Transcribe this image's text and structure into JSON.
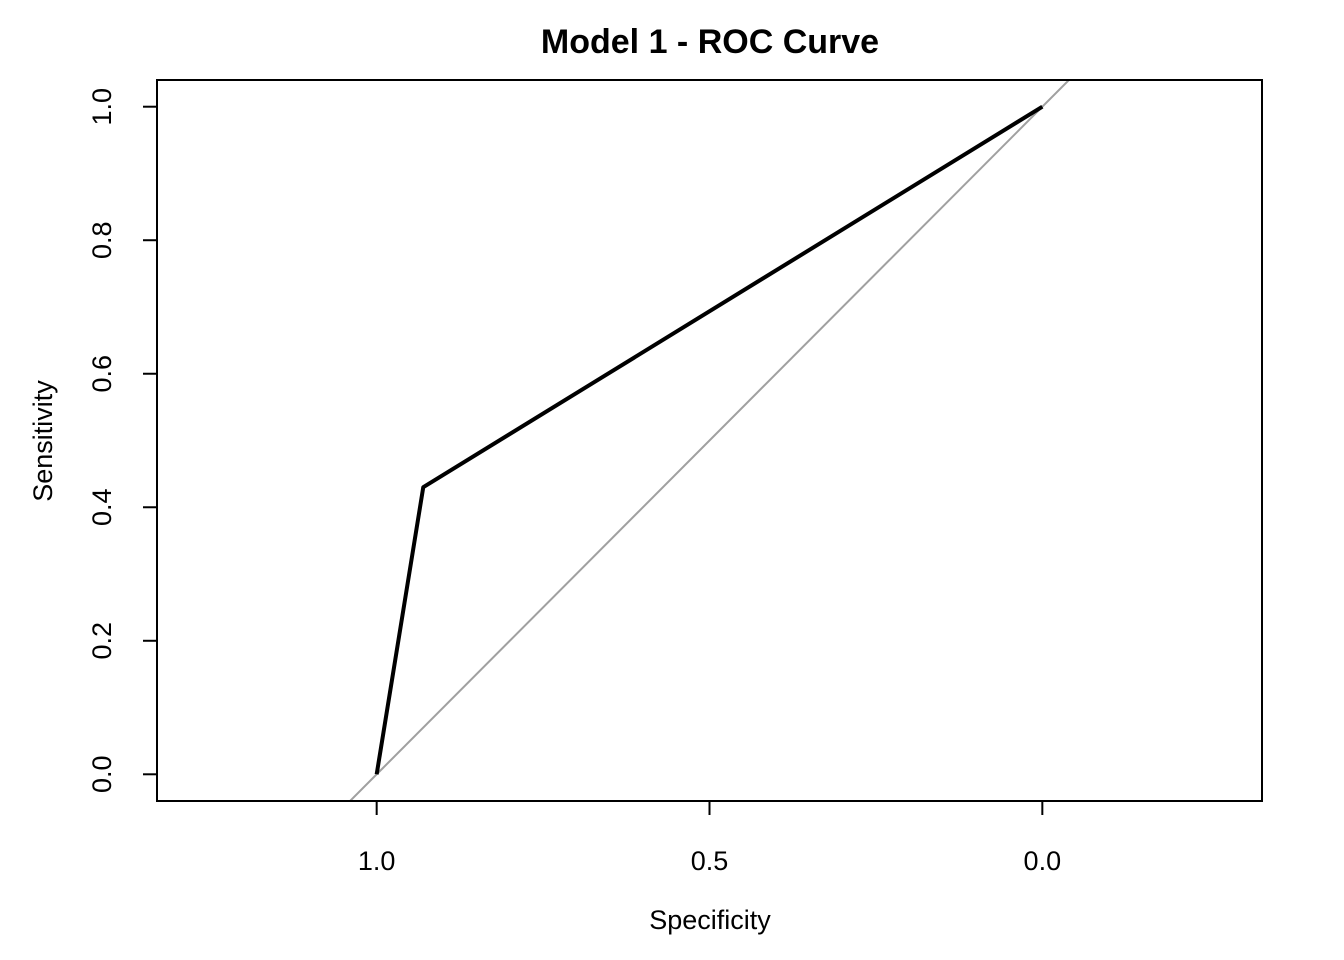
{
  "chart_data": {
    "type": "line",
    "title": "Model 1 - ROC Curve",
    "xlabel": "Specificity",
    "ylabel": "Sensitivity",
    "x_reversed": true,
    "xlim": [
      1.33,
      -0.33
    ],
    "ylim": [
      -0.04,
      1.04
    ],
    "x_ticks": [
      {
        "value": 1.0,
        "label": "1.0"
      },
      {
        "value": 0.5,
        "label": "0.5"
      },
      {
        "value": 0.0,
        "label": "0.0"
      }
    ],
    "y_ticks": [
      {
        "value": 0.0,
        "label": "0.0"
      },
      {
        "value": 0.2,
        "label": "0.2"
      },
      {
        "value": 0.4,
        "label": "0.4"
      },
      {
        "value": 0.6,
        "label": "0.6"
      },
      {
        "value": 0.8,
        "label": "0.8"
      },
      {
        "value": 1.0,
        "label": "1.0"
      }
    ],
    "series": [
      {
        "specificity": [
          1.0,
          0.93,
          0.0
        ],
        "sensitivity": [
          0.0,
          0.43,
          1.0
        ],
        "color": "#000000"
      }
    ],
    "reference_line": {
      "description": "diagonal sensitivity = 1 - specificity",
      "color": "#a0a0a0"
    },
    "grid": false,
    "legend": "none"
  }
}
